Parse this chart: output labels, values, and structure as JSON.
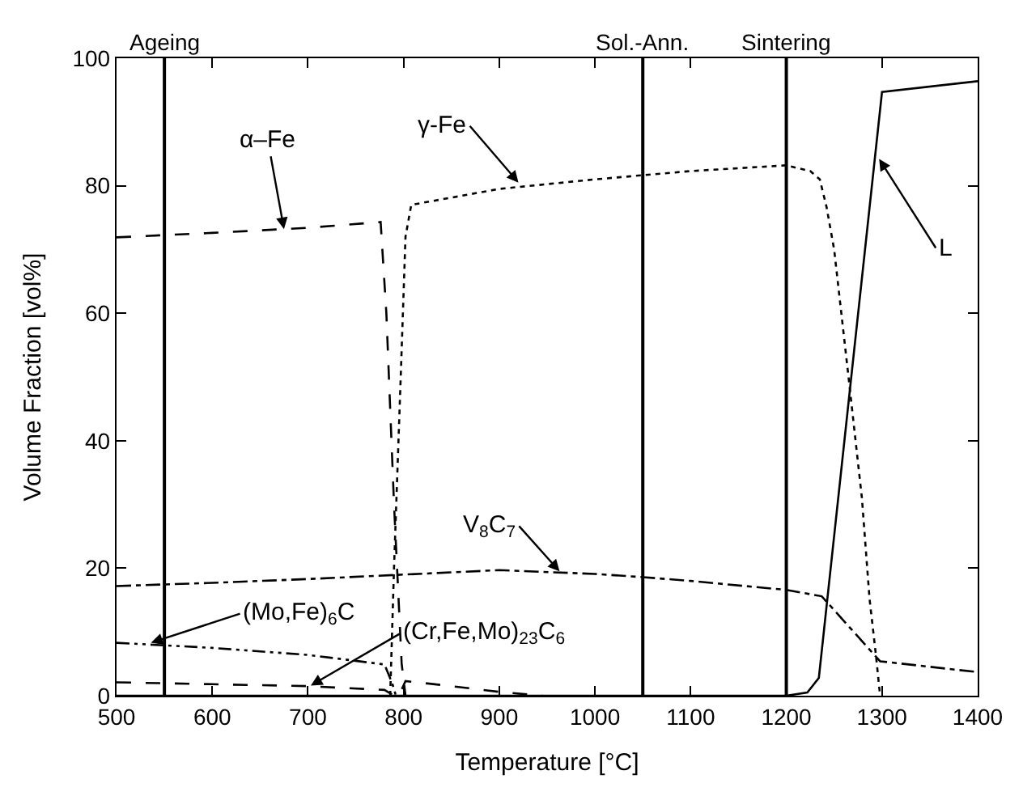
{
  "chart_data": {
    "type": "line",
    "xlabel": "Temperature [°C]",
    "ylabel": "Volume Fraction [vol%]",
    "xlim": [
      500,
      1400
    ],
    "xticks": [
      500,
      600,
      700,
      800,
      900,
      1000,
      1100,
      1200,
      1300,
      1400
    ],
    "ylim": [
      0,
      100
    ],
    "yticks": [
      0,
      20,
      40,
      60,
      80,
      100
    ],
    "marker": "none",
    "series": [
      {
        "color": "#000000",
        "line_style": "dashed",
        "x": [
          500,
          600,
          700,
          776,
          782,
          790,
          798,
          802
        ],
        "values": [
          71.9,
          72.6,
          73.4,
          74.3,
          60,
          30,
          5,
          0
        ]
      },
      {
        "color": "#000000",
        "line_style": "dotted",
        "x": [
          786,
          790,
          797,
          802,
          808,
          900,
          1000,
          1100,
          1200,
          1225,
          1235,
          1242,
          1250,
          1265,
          1279,
          1287,
          1294,
          1298
        ],
        "values": [
          0,
          20,
          50,
          72,
          77,
          79.5,
          81,
          82.3,
          83.2,
          82.3,
          81,
          76.7,
          70,
          50,
          31,
          15.2,
          5.9,
          0
        ]
      },
      {
        "color": "#000000",
        "line_style": "solid",
        "x": [
          500,
          1200,
          1222,
          1234,
          1300,
          1400
        ],
        "values": [
          0,
          0,
          0.5,
          2.8,
          94.7,
          96.4
        ]
      },
      {
        "color": "#000000",
        "line_style": "dashdot",
        "x": [
          500,
          600,
          700,
          800,
          900,
          1000,
          1050,
          1100,
          1200,
          1237,
          1298,
          1400
        ],
        "values": [
          17.2,
          17.7,
          18.3,
          19,
          19.7,
          19.1,
          18.6,
          18,
          16.6,
          15.6,
          5.4,
          3.7
        ]
      },
      {
        "color": "#000000",
        "line_style": "longdashdot",
        "x": [
          500,
          600,
          700,
          780,
          788,
          792
        ],
        "values": [
          8.3,
          7.5,
          6.4,
          4.9,
          2,
          0
        ]
      },
      {
        "color": "#000000",
        "line_style": "dashed",
        "x": [
          500,
          600,
          700,
          780,
          790,
          795,
          802,
          850,
          900,
          945
        ],
        "values": [
          2.1,
          1.8,
          1.5,
          0.9,
          0,
          0,
          2.3,
          1.5,
          0.6,
          0
        ]
      }
    ],
    "ref_lines": [
      {
        "axis": "x",
        "value": 550,
        "label": "Ageing",
        "color": "#000000"
      },
      {
        "axis": "x",
        "value": 1050,
        "label": "Sol.-Ann.",
        "color": "#000000"
      },
      {
        "axis": "x",
        "value": 1200,
        "label": "Sintering",
        "color": "#000000"
      }
    ],
    "annotations": [
      {
        "text": "α–Fe",
        "x": 675,
        "y": 73.2
      },
      {
        "text": "γ-Fe",
        "x": 920,
        "y": 80.5
      },
      {
        "text": "L",
        "x": 1297,
        "y": 84.2
      },
      {
        "text": "V$_{8}$C$_{7}$",
        "x": 963,
        "y": 19.5
      },
      {
        "text": "(Mo,Fe)$_{6}$C",
        "x": 536,
        "y": 8.3
      },
      {
        "text": "(Cr,Fe,Mo)$_{23}$C$_{6}$",
        "x": 703,
        "y": 1.6
      }
    ]
  }
}
